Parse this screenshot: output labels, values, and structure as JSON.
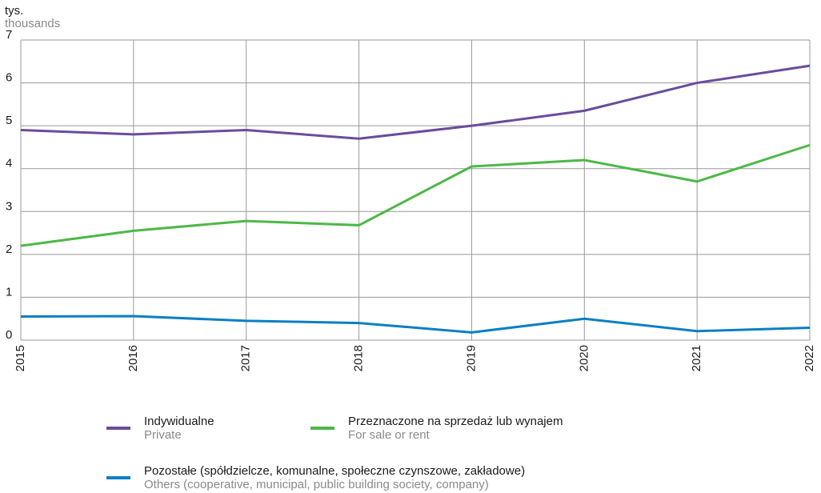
{
  "chart_data": {
    "type": "line",
    "y_label": "tys.",
    "y_label_en": "thousands",
    "x": [
      2015,
      2016,
      2017,
      2018,
      2019,
      2020,
      2021,
      2022
    ],
    "xlim": [
      2015,
      2022
    ],
    "ylim": [
      0,
      7
    ],
    "yticks": [
      0,
      1,
      2,
      3,
      4,
      5,
      6,
      7
    ],
    "grid": true,
    "series": [
      {
        "name": "Indywidualne",
        "name_en": "Private",
        "color": "#6a4c9c",
        "values": [
          4.9,
          4.8,
          4.9,
          4.7,
          5.0,
          5.35,
          6.0,
          6.4
        ]
      },
      {
        "name": "Przeznaczone na sprzedaż lub wynajem",
        "name_en": "For sale or rent",
        "color": "#4db848",
        "values": [
          2.2,
          2.55,
          2.78,
          2.68,
          4.05,
          4.2,
          3.7,
          4.55
        ]
      },
      {
        "name": "Pozostałe (spółdzielcze, komunalne, społeczne czynszowe, zakładowe)",
        "name_en": "Others (cooperative, municipal, public building society, company)",
        "color": "#0a7fc4",
        "values": [
          0.55,
          0.56,
          0.45,
          0.4,
          0.18,
          0.5,
          0.21,
          0.29
        ]
      }
    ]
  }
}
